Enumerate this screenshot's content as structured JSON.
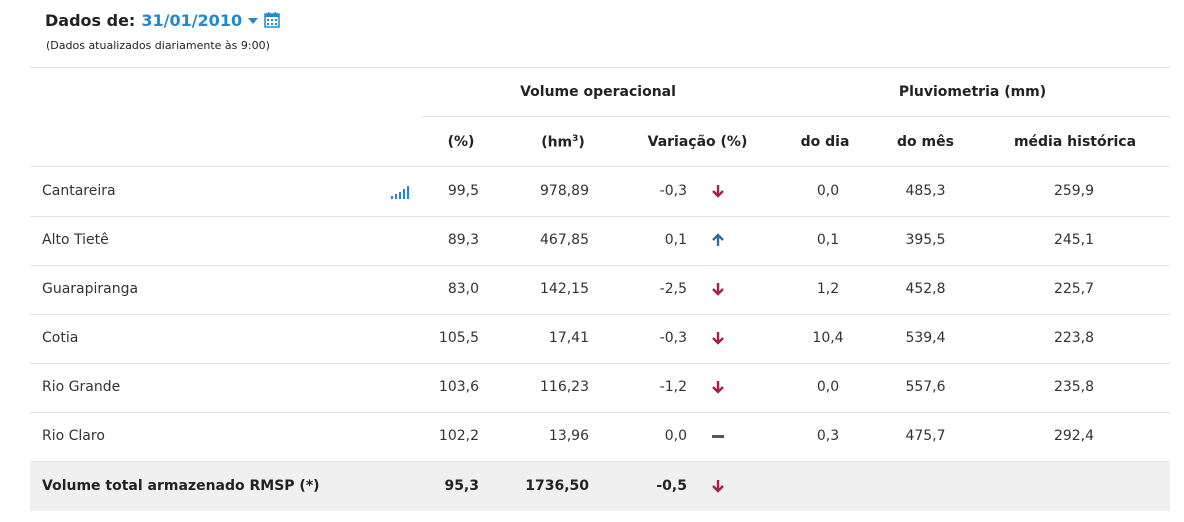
{
  "header": {
    "label": "Dados de:",
    "date": "31/01/2010",
    "note": "(Dados atualizados diariamente às 9:00)"
  },
  "groups": {
    "volume": "Volume operacional",
    "pluvio": "Pluviometria (mm)"
  },
  "columns": {
    "pct": "(%)",
    "hm3_base": "(hm",
    "hm3_sup": "3",
    "hm3_close": ")",
    "variacao": "Variação (%)",
    "do_dia": "do dia",
    "do_mes": "do mês",
    "media": "média histórica"
  },
  "colors": {
    "down": "#a3214a",
    "up": "#2e6f94",
    "neutral": "#555555",
    "accent": "#1f8ad1"
  },
  "rows": [
    {
      "name": "Cantareira",
      "pct": "99,5",
      "hm3": "978,89",
      "var": "-0,3",
      "trend": "down",
      "dia": "0,0",
      "mes": "485,3",
      "media": "259,9"
    },
    {
      "name": "Alto Tietê",
      "pct": "89,3",
      "hm3": "467,85",
      "var": "0,1",
      "trend": "up",
      "dia": "0,1",
      "mes": "395,5",
      "media": "245,1"
    },
    {
      "name": "Guarapiranga",
      "pct": "83,0",
      "hm3": "142,15",
      "var": "-2,5",
      "trend": "down",
      "dia": "1,2",
      "mes": "452,8",
      "media": "225,7"
    },
    {
      "name": "Cotia",
      "pct": "105,5",
      "hm3": "17,41",
      "var": "-0,3",
      "trend": "down",
      "dia": "10,4",
      "mes": "539,4",
      "media": "223,8"
    },
    {
      "name": "Rio Grande",
      "pct": "103,6",
      "hm3": "116,23",
      "var": "-1,2",
      "trend": "down",
      "dia": "0,0",
      "mes": "557,6",
      "media": "235,8"
    },
    {
      "name": "Rio Claro",
      "pct": "102,2",
      "hm3": "13,96",
      "var": "0,0",
      "trend": "neutral",
      "dia": "0,3",
      "mes": "475,7",
      "media": "292,4"
    }
  ],
  "total": {
    "name": "Volume total armazenado RMSP (*)",
    "pct": "95,3",
    "hm3": "1736,50",
    "var": "-0,5",
    "trend": "down"
  }
}
